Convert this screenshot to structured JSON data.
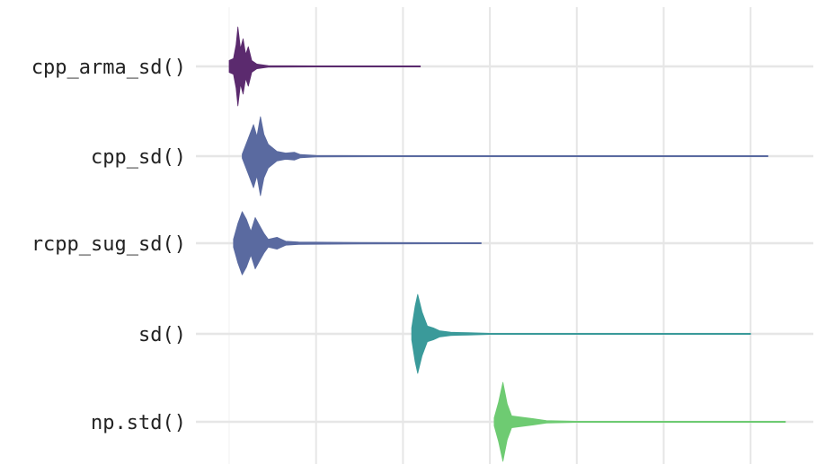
{
  "chart_data": {
    "type": "violin",
    "title": "",
    "xlabel": "",
    "ylabel": "",
    "grid": true,
    "legend": "none",
    "categories": [
      "cpp_arma_sd()",
      "cpp_sd()",
      "rcpp_sug_sd()",
      "sd()",
      "np.std()"
    ],
    "xlim": [
      0,
      6
    ],
    "x_gridlines": [
      1,
      2,
      3,
      4,
      5,
      6
    ],
    "series": [
      {
        "category": "cpp_arma_sd()",
        "color": "#5b2a6e",
        "min": 0,
        "max": 2.2,
        "profile": [
          [
            0.0,
            0.15
          ],
          [
            0.05,
            0.2
          ],
          [
            0.08,
            0.55
          ],
          [
            0.1,
            1.0
          ],
          [
            0.13,
            0.45
          ],
          [
            0.16,
            0.7
          ],
          [
            0.19,
            0.3
          ],
          [
            0.22,
            0.5
          ],
          [
            0.26,
            0.15
          ],
          [
            0.32,
            0.06
          ],
          [
            0.45,
            0.02
          ],
          [
            1.0,
            0.01
          ],
          [
            2.2,
            0.005
          ]
        ]
      },
      {
        "category": "cpp_sd()",
        "color": "#5a6aa0",
        "min": 0.15,
        "max": 6.2,
        "profile": [
          [
            0.15,
            0.05
          ],
          [
            0.22,
            0.45
          ],
          [
            0.28,
            0.8
          ],
          [
            0.32,
            0.5
          ],
          [
            0.36,
            1.0
          ],
          [
            0.4,
            0.55
          ],
          [
            0.45,
            0.3
          ],
          [
            0.55,
            0.12
          ],
          [
            0.65,
            0.08
          ],
          [
            0.75,
            0.1
          ],
          [
            0.82,
            0.04
          ],
          [
            1.0,
            0.02
          ],
          [
            1.8,
            0.01
          ],
          [
            6.2,
            0.005
          ]
        ]
      },
      {
        "category": "rcpp_sug_sd()",
        "color": "#5a6aa0",
        "min": 0.05,
        "max": 2.9,
        "profile": [
          [
            0.05,
            0.1
          ],
          [
            0.1,
            0.5
          ],
          [
            0.15,
            0.8
          ],
          [
            0.2,
            0.6
          ],
          [
            0.25,
            0.3
          ],
          [
            0.3,
            0.65
          ],
          [
            0.35,
            0.45
          ],
          [
            0.4,
            0.25
          ],
          [
            0.45,
            0.1
          ],
          [
            0.55,
            0.15
          ],
          [
            0.65,
            0.05
          ],
          [
            0.8,
            0.03
          ],
          [
            1.5,
            0.02
          ],
          [
            2.9,
            0.005
          ]
        ]
      },
      {
        "category": "sd()",
        "color": "#3a9a9a",
        "min": 2.1,
        "max": 6.0,
        "profile": [
          [
            2.1,
            0.15
          ],
          [
            2.14,
            0.7
          ],
          [
            2.17,
            1.0
          ],
          [
            2.22,
            0.55
          ],
          [
            2.28,
            0.2
          ],
          [
            2.35,
            0.15
          ],
          [
            2.42,
            0.08
          ],
          [
            2.55,
            0.04
          ],
          [
            2.75,
            0.03
          ],
          [
            3.0,
            0.01
          ],
          [
            6.0,
            0.005
          ]
        ]
      },
      {
        "category": "np.std()",
        "color": "#6ecb72",
        "min": 3.05,
        "max": 6.4,
        "profile": [
          [
            3.05,
            0.1
          ],
          [
            3.1,
            0.5
          ],
          [
            3.15,
            1.0
          ],
          [
            3.2,
            0.45
          ],
          [
            3.25,
            0.15
          ],
          [
            3.35,
            0.12
          ],
          [
            3.5,
            0.08
          ],
          [
            3.65,
            0.03
          ],
          [
            4.0,
            0.01
          ],
          [
            6.4,
            0.005
          ]
        ]
      }
    ]
  }
}
